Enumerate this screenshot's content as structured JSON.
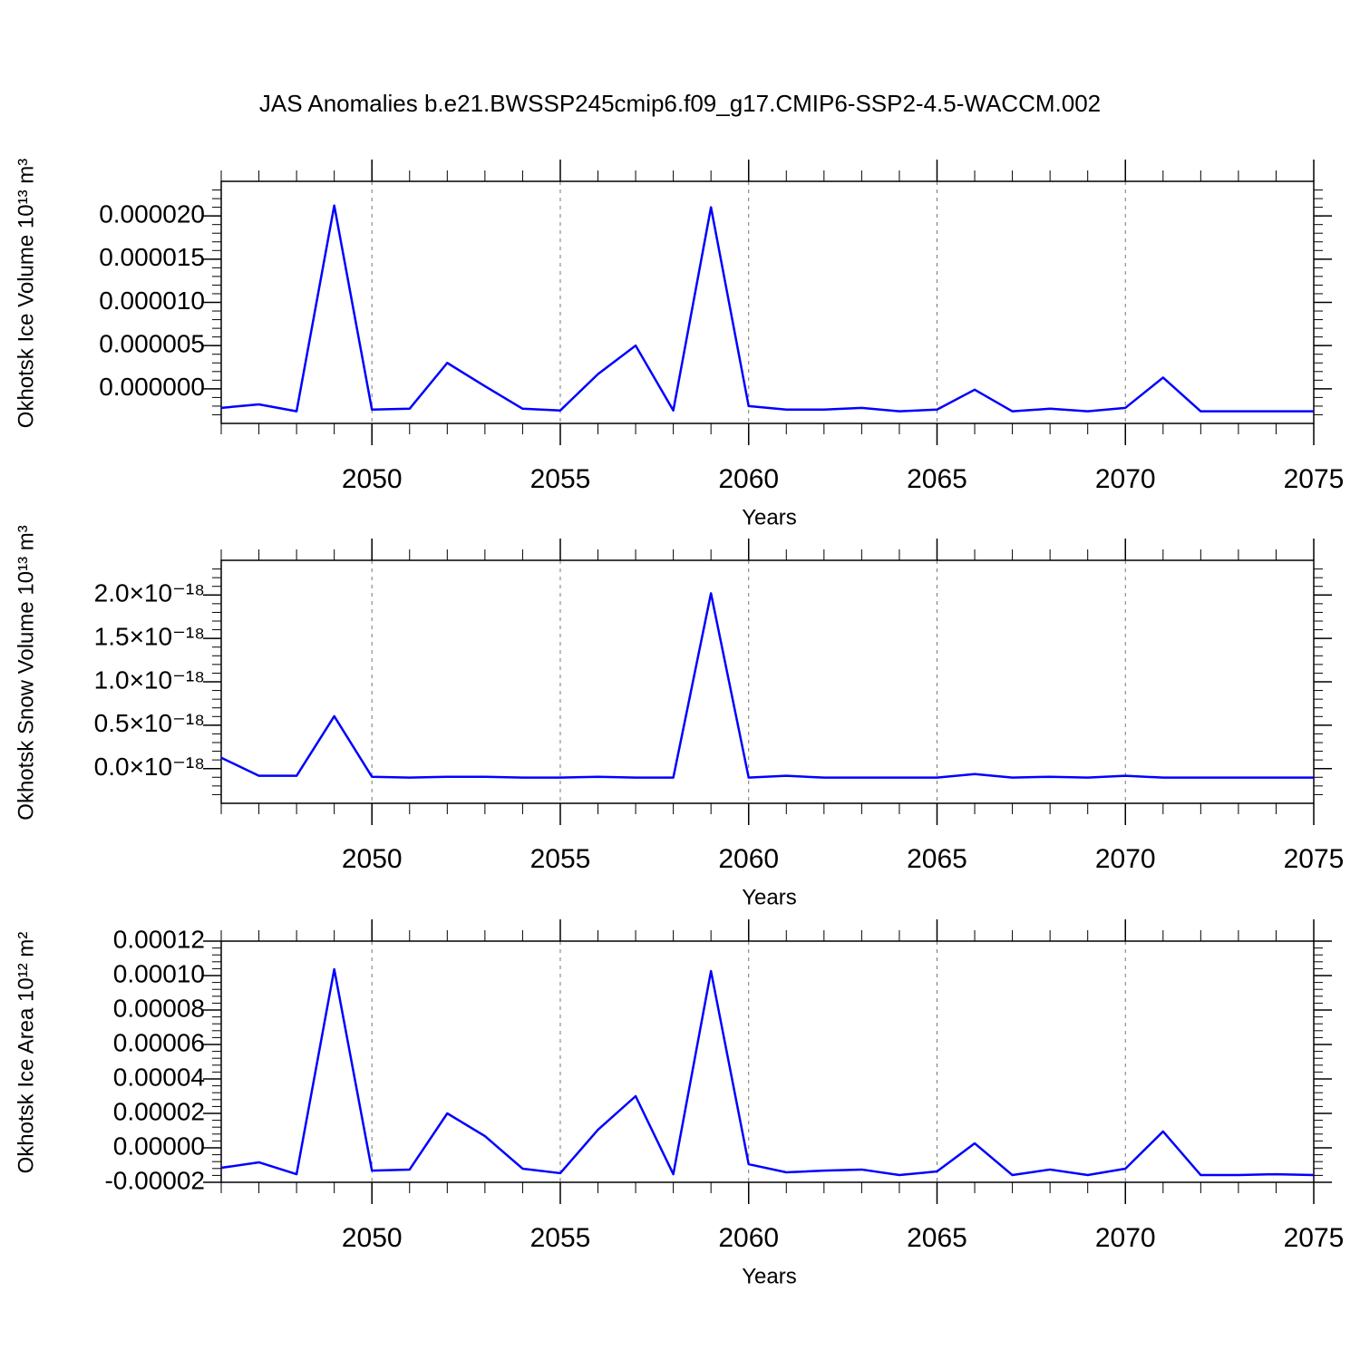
{
  "chart_data": [
    {
      "type": "line",
      "title": "JAS Anomalies b.e21.BWSSP245cmip6.f09_g17.CMIP6-SSP2-4.5-WACCM.002",
      "xlabel": "Years",
      "ylabel": "Okhotsk Ice Volume 10¹³ m³",
      "x": [
        2046,
        2047,
        2048,
        2049,
        2050,
        2051,
        2052,
        2053,
        2054,
        2055,
        2056,
        2057,
        2058,
        2059,
        2060,
        2061,
        2062,
        2063,
        2064,
        2065,
        2066,
        2067,
        2068,
        2069,
        2070,
        2071,
        2072,
        2073,
        2074,
        2075
      ],
      "series": [
        {
          "color": "#0000ff",
          "values": [
            -2.2e-06,
            -1.8e-06,
            -2.6e-06,
            2.12e-05,
            -2.4e-06,
            -2.3e-06,
            3e-06,
            3e-07,
            -2.3e-06,
            -2.5e-06,
            1.7e-06,
            5e-06,
            -2.5e-06,
            2.1e-05,
            -2e-06,
            -2.4e-06,
            -2.4e-06,
            -2.2e-06,
            -2.6e-06,
            -2.4e-06,
            -1e-07,
            -2.6e-06,
            -2.3e-06,
            -2.6e-06,
            -2.2e-06,
            1.3e-06,
            -2.6e-06,
            -2.6e-06,
            -2.6e-06,
            -2.6e-06
          ]
        }
      ],
      "xlim": [
        2046,
        2075
      ],
      "xticks": [
        2050,
        2055,
        2060,
        2065,
        2070,
        2075
      ],
      "ylim": [
        -4e-06,
        2.4e-05
      ],
      "yticks": [
        {
          "value": 0,
          "label": "0.000000"
        },
        {
          "value": 5e-06,
          "label": "0.000005"
        },
        {
          "value": 1e-05,
          "label": "0.000010"
        },
        {
          "value": 1.5e-05,
          "label": "0.000015"
        },
        {
          "value": 2e-05,
          "label": "0.000020"
        }
      ],
      "grid": true
    },
    {
      "type": "line",
      "xlabel": "Years",
      "ylabel": "Okhotsk Snow Volume 10¹³ m³",
      "x": [
        2046,
        2047,
        2048,
        2049,
        2050,
        2051,
        2052,
        2053,
        2054,
        2055,
        2056,
        2057,
        2058,
        2059,
        2060,
        2061,
        2062,
        2063,
        2064,
        2065,
        2066,
        2067,
        2068,
        2069,
        2070,
        2071,
        2072,
        2073,
        2074,
        2075
      ],
      "series": [
        {
          "color": "#0000ff",
          "values": [
            1.25e-19,
            -8.3e-20,
            -8.3e-20,
            6.04e-19,
            -9.4e-20,
            -1.04e-19,
            -9.4e-20,
            -9.4e-20,
            -1.04e-19,
            -1.04e-19,
            -9.4e-20,
            -1.04e-19,
            -1.04e-19,
            2.02e-18,
            -1.04e-19,
            -8.3e-20,
            -1.04e-19,
            -1.04e-19,
            -1.04e-19,
            -1.04e-19,
            -6.3e-20,
            -1.04e-19,
            -9.4e-20,
            -1.04e-19,
            -8.3e-20,
            -1.04e-19,
            -1.04e-19,
            -1.04e-19,
            -1.04e-19,
            -1.04e-19
          ]
        }
      ],
      "xlim": [
        2046,
        2075
      ],
      "xticks": [
        2050,
        2055,
        2060,
        2065,
        2070,
        2075
      ],
      "ylim": [
        -4e-19,
        2.4e-18
      ],
      "yticks": [
        {
          "value": 0,
          "label": "0.0×10⁻¹⁸"
        },
        {
          "value": 5e-19,
          "label": "0.5×10⁻¹⁸"
        },
        {
          "value": 1e-18,
          "label": "1.0×10⁻¹⁸"
        },
        {
          "value": 1.5e-18,
          "label": "1.5×10⁻¹⁸"
        },
        {
          "value": 2e-18,
          "label": "2.0×10⁻¹⁸"
        }
      ],
      "grid": true
    },
    {
      "type": "line",
      "xlabel": "Years",
      "ylabel": "Okhotsk Ice Area 10¹² m²",
      "x": [
        2046,
        2047,
        2048,
        2049,
        2050,
        2051,
        2052,
        2053,
        2054,
        2055,
        2056,
        2057,
        2058,
        2059,
        2060,
        2061,
        2062,
        2063,
        2064,
        2065,
        2066,
        2067,
        2068,
        2069,
        2070,
        2071,
        2072,
        2073,
        2074,
        2075
      ],
      "series": [
        {
          "color": "#0000ff",
          "values": [
            -1.16e-05,
            -8.4e-06,
            -1.53e-05,
            0.0001037,
            -1.32e-05,
            -1.26e-05,
            2e-05,
            6.8e-06,
            -1.21e-05,
            -1.47e-05,
            1.05e-05,
            3e-05,
            -1.53e-05,
            0.0001026,
            -9.5e-06,
            -1.42e-05,
            -1.32e-05,
            -1.26e-05,
            -1.58e-05,
            -1.37e-05,
            2.6e-06,
            -1.58e-05,
            -1.26e-05,
            -1.58e-05,
            -1.21e-05,
            9.5e-06,
            -1.58e-05,
            -1.58e-05,
            -1.53e-05,
            -1.58e-05
          ]
        }
      ],
      "xlim": [
        2046,
        2075
      ],
      "xticks": [
        2050,
        2055,
        2060,
        2065,
        2070,
        2075
      ],
      "ylim": [
        -2e-05,
        0.00012
      ],
      "yticks": [
        -2e-05,
        {
          "value": 0,
          "label": "0.00000"
        },
        2e-05,
        4e-05,
        6e-05,
        8e-05,
        {
          "value": 0.0001,
          "label": "0.00010"
        },
        0.00012
      ],
      "grid": true
    }
  ]
}
